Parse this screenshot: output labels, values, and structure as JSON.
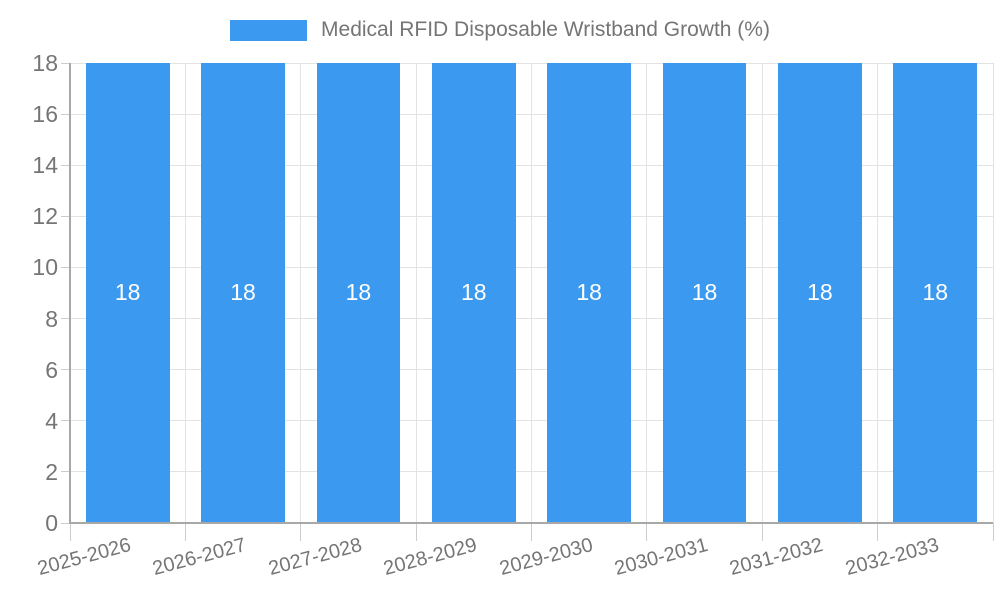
{
  "legend": {
    "label": "Medical RFID Disposable Wristband Growth (%)"
  },
  "chart_data": {
    "type": "bar",
    "title": "Medical RFID Disposable Wristband Growth (%)",
    "categories": [
      "2025-2026",
      "2026-2027",
      "2027-2028",
      "2028-2029",
      "2029-2030",
      "2030-2031",
      "2031-2032",
      "2032-2033"
    ],
    "series": [
      {
        "name": "Medical RFID Disposable Wristband Growth (%)",
        "values": [
          18,
          18,
          18,
          18,
          18,
          18,
          18,
          18
        ]
      }
    ],
    "bar_labels": [
      "18",
      "18",
      "18",
      "18",
      "18",
      "18",
      "18",
      "18"
    ],
    "xlabel": "",
    "ylabel": "",
    "ylim": [
      0,
      18
    ],
    "yticks": [
      0,
      2,
      4,
      6,
      8,
      10,
      12,
      14,
      16,
      18
    ],
    "grid": true,
    "legend_position": "top",
    "x_label_rotation_deg": -15
  },
  "colors": {
    "bar": "#3b9af0",
    "grid": "#e3e3e3",
    "axis": "#a8a8a8",
    "tick": "#cccccc",
    "text": "#757575",
    "bar_label": "#ffffff"
  }
}
